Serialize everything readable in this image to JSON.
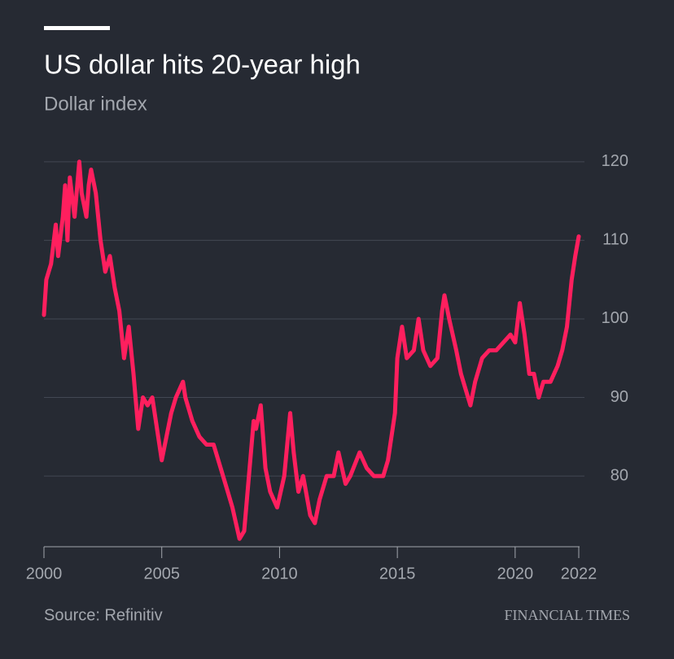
{
  "chart_data": {
    "type": "line",
    "title": "US dollar hits 20-year high",
    "subtitle": "Dollar index",
    "source": "Source: Refinitiv",
    "brand": "FINANCIAL TIMES",
    "x": [
      2000.0,
      2000.1,
      2000.3,
      2000.5,
      2000.6,
      2000.8,
      2000.9,
      2001.0,
      2001.1,
      2001.3,
      2001.5,
      2001.6,
      2001.8,
      2001.9,
      2002.0,
      2002.2,
      2002.4,
      2002.6,
      2002.8,
      2003.0,
      2003.2,
      2003.4,
      2003.6,
      2003.8,
      2004.0,
      2004.2,
      2004.4,
      2004.6,
      2004.8,
      2005.0,
      2005.2,
      2005.4,
      2005.6,
      2005.9,
      2006.0,
      2006.3,
      2006.6,
      2006.9,
      2007.2,
      2007.5,
      2007.8,
      2008.0,
      2008.3,
      2008.5,
      2008.7,
      2008.9,
      2009.0,
      2009.2,
      2009.4,
      2009.6,
      2009.9,
      2010.2,
      2010.45,
      2010.6,
      2010.8,
      2011.0,
      2011.3,
      2011.5,
      2011.7,
      2012.0,
      2012.3,
      2012.5,
      2012.8,
      2013.0,
      2013.4,
      2013.7,
      2014.0,
      2014.4,
      2014.6,
      2014.9,
      2015.0,
      2015.2,
      2015.4,
      2015.7,
      2015.9,
      2016.1,
      2016.4,
      2016.7,
      2016.9,
      2017.0,
      2017.2,
      2017.5,
      2017.7,
      2018.0,
      2018.1,
      2018.3,
      2018.6,
      2018.9,
      2019.2,
      2019.5,
      2019.8,
      2020.0,
      2020.2,
      2020.4,
      2020.6,
      2020.8,
      2021.0,
      2021.2,
      2021.5,
      2021.8,
      2022.0,
      2022.2,
      2022.4,
      2022.55,
      2022.7
    ],
    "series": [
      {
        "name": "Dollar index",
        "color": "#ff1f5e",
        "values": [
          100.5,
          105,
          107,
          112,
          108,
          113,
          117,
          110,
          118,
          113,
          120,
          116,
          113,
          117,
          119,
          116,
          110,
          106,
          108,
          104,
          101,
          95,
          99,
          93,
          86,
          90,
          89,
          90,
          86,
          82,
          85,
          88,
          90,
          92,
          90,
          87,
          85,
          84,
          84,
          81,
          78,
          76,
          72,
          73,
          80,
          87,
          86,
          89,
          81,
          78,
          76,
          80,
          88,
          83,
          78,
          80,
          75,
          74,
          77,
          80,
          80,
          83,
          79,
          80,
          83,
          81,
          80,
          80,
          82,
          88,
          95,
          99,
          95,
          96,
          100,
          96,
          94,
          95,
          101,
          103,
          100,
          96,
          93,
          90,
          89,
          92,
          95,
          96,
          96,
          97,
          98,
          97,
          102,
          98,
          93,
          93,
          90,
          92,
          92,
          94,
          96,
          99,
          105,
          108,
          110.5
        ]
      }
    ],
    "xlim": [
      2000,
      2022.7
    ],
    "xticks": [
      2000,
      2005,
      2010,
      2015,
      2020,
      {
        "value": 2022.7,
        "label": "2022"
      }
    ],
    "ylim": [
      71,
      122
    ],
    "yticks": [
      80,
      90,
      100,
      110,
      120
    ],
    "grid": true
  }
}
